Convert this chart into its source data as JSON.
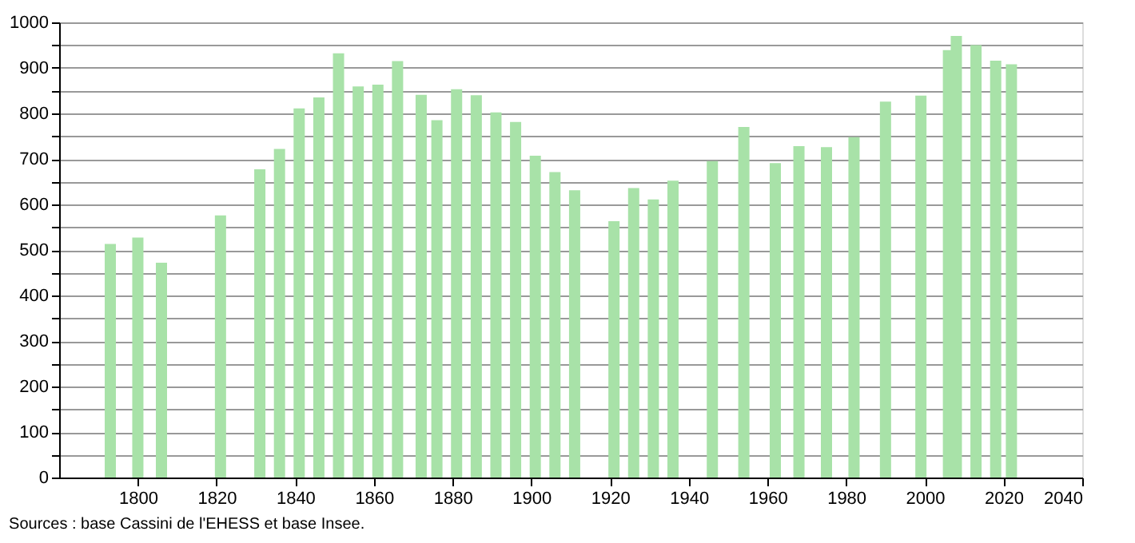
{
  "chart_data": {
    "type": "bar",
    "color": "#a8e2a8",
    "x": [
      1793,
      1800,
      1806,
      1821,
      1831,
      1836,
      1841,
      1846,
      1851,
      1856,
      1861,
      1866,
      1872,
      1876,
      1881,
      1886,
      1891,
      1896,
      1901,
      1906,
      1911,
      1921,
      1926,
      1931,
      1936,
      1946,
      1954,
      1962,
      1968,
      1975,
      1982,
      1990,
      1999,
      2006,
      2008,
      2013,
      2018,
      2022
    ],
    "values": [
      513,
      527,
      472,
      576,
      677,
      722,
      811,
      835,
      932,
      859,
      863,
      915,
      841,
      785,
      853,
      840,
      802,
      781,
      707,
      671,
      631,
      563,
      636,
      611,
      652,
      695,
      770,
      691,
      728,
      726,
      748,
      826,
      839,
      939,
      970,
      950,
      916,
      908
    ],
    "xlim": [
      1780,
      2040
    ],
    "xticks": [
      1800,
      1820,
      1840,
      1860,
      1880,
      1900,
      1920,
      1940,
      1960,
      1980,
      2000,
      2020,
      2040
    ],
    "ylim": [
      0,
      1000
    ],
    "yticks": [
      0,
      {
        "value": 50,
        "label": null
      },
      100,
      {
        "value": 150,
        "label": null
      },
      200,
      {
        "value": 250,
        "label": null
      },
      300,
      {
        "value": 350,
        "label": null
      },
      400,
      {
        "value": 450,
        "label": null
      },
      500,
      {
        "value": 550,
        "label": null
      },
      600,
      {
        "value": 650,
        "label": null
      },
      700,
      {
        "value": 750,
        "label": null
      },
      800,
      {
        "value": 850,
        "label": null
      },
      900,
      {
        "value": 950,
        "label": null
      },
      1000
    ],
    "grid": "y",
    "annotations": [
      "Sources : base Cassini de l'EHESS et base Insee."
    ]
  }
}
